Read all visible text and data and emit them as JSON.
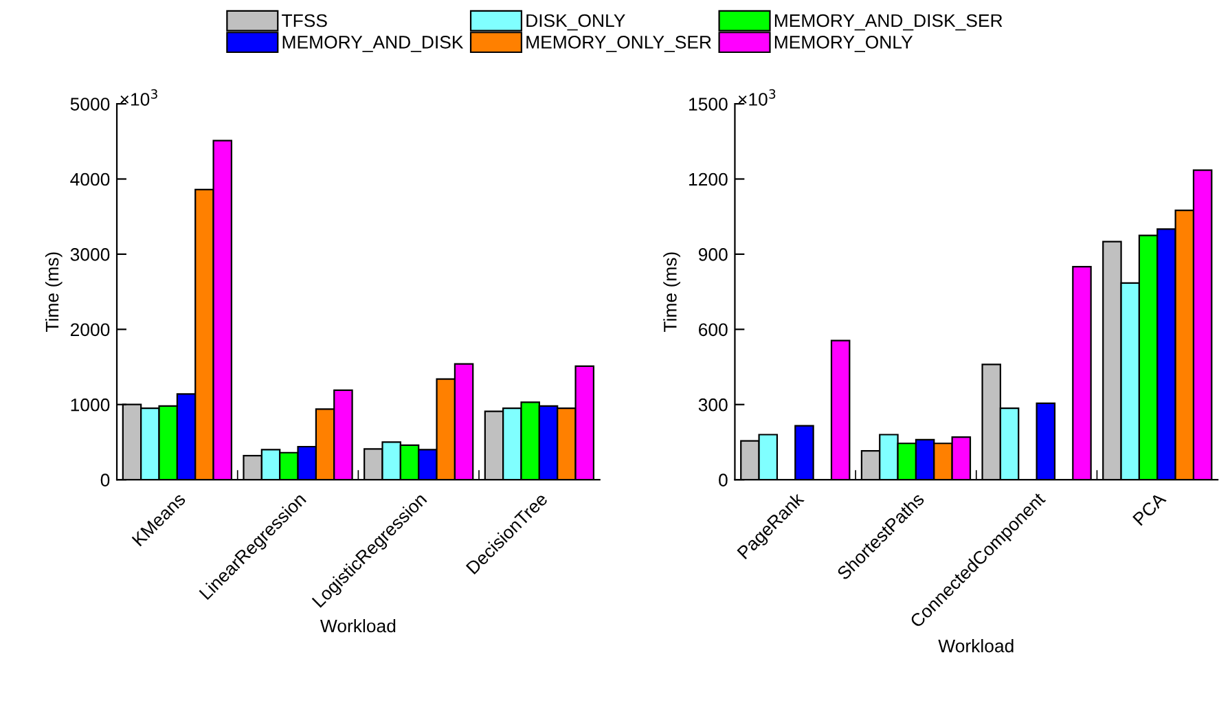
{
  "chart_data": [
    {
      "type": "bar",
      "xlabel": "Workload",
      "ylabel": "Time (ms)",
      "annotations": [
        "×10$^{3}$"
      ],
      "legend": "top",
      "ylim": [
        0,
        5000
      ],
      "yticks": [
        0,
        1000,
        2000,
        3000,
        4000,
        5000
      ],
      "grid": false,
      "categories": [
        "KMeans",
        "LinearRegression",
        "LogisticRegression",
        "DecisionTree"
      ],
      "series": [
        {
          "name": "TFSS",
          "color": "#c0c0c0",
          "values": [
            1000,
            320,
            410,
            910
          ]
        },
        {
          "name": "DISK_ONLY",
          "color": "#80ffff",
          "values": [
            950,
            400,
            500,
            950
          ]
        },
        {
          "name": "MEMORY_AND_DISK_SER",
          "color": "#00ff00",
          "values": [
            980,
            360,
            460,
            1030
          ]
        },
        {
          "name": "MEMORY_AND_DISK",
          "color": "#0000ff",
          "values": [
            1140,
            440,
            400,
            980
          ]
        },
        {
          "name": "MEMORY_ONLY_SER",
          "color": "#ff8000",
          "values": [
            3860,
            940,
            1340,
            950
          ]
        },
        {
          "name": "MEMORY_ONLY",
          "color": "#ff00ff",
          "values": [
            4510,
            1190,
            1540,
            1510
          ]
        }
      ]
    },
    {
      "type": "bar",
      "xlabel": "Workload",
      "ylabel": "Time (ms)",
      "annotations": [
        "×10$^{3}$"
      ],
      "legend": "top",
      "ylim": [
        0,
        1500
      ],
      "yticks": [
        0,
        300,
        600,
        900,
        1200,
        1500
      ],
      "grid": false,
      "categories": [
        "PageRank",
        "ShortestPaths",
        "ConnectedComponent",
        "PCA"
      ],
      "series": [
        {
          "name": "TFSS",
          "color": "#c0c0c0",
          "values": [
            155,
            115,
            460,
            950
          ]
        },
        {
          "name": "DISK_ONLY",
          "color": "#80ffff",
          "values": [
            180,
            180,
            285,
            785
          ]
        },
        {
          "name": "MEMORY_AND_DISK_SER",
          "color": "#00ff00",
          "values": [
            null,
            145,
            null,
            975
          ]
        },
        {
          "name": "MEMORY_AND_DISK",
          "color": "#0000ff",
          "values": [
            215,
            160,
            305,
            1000
          ]
        },
        {
          "name": "MEMORY_ONLY_SER",
          "color": "#ff8000",
          "values": [
            null,
            145,
            null,
            1075
          ]
        },
        {
          "name": "MEMORY_ONLY",
          "color": "#ff00ff",
          "values": [
            555,
            170,
            850,
            1235
          ]
        }
      ]
    }
  ]
}
